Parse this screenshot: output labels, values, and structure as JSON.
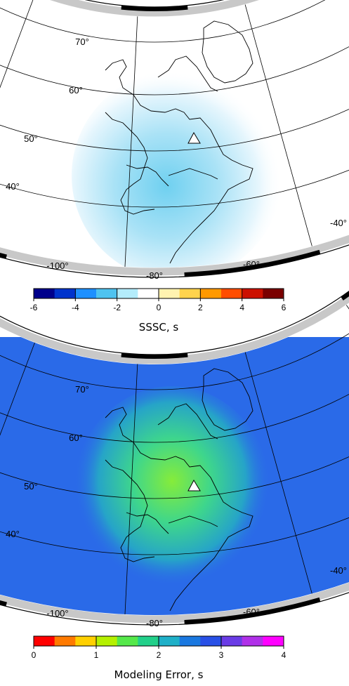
{
  "maps": [
    {
      "id": "sssc",
      "colorbar": {
        "title": "SSSC, s",
        "ticks": [
          "-6",
          "-4",
          "-2",
          "0",
          "2",
          "4",
          "6"
        ],
        "range": [
          -6,
          6
        ],
        "colors": [
          "#00008b",
          "#0033cc",
          "#1e90ff",
          "#4fc3f0",
          "#b3ecfb",
          "#ffffff",
          "#fff3b0",
          "#ffd34d",
          "#ff9900",
          "#ff4d00",
          "#cc1100",
          "#7a0000"
        ]
      },
      "field_colors": {
        "outer": "#ffffff",
        "mid": "#e6f6fd",
        "inner": "#a9e2f6",
        "core": "#6fd0f0"
      }
    },
    {
      "id": "modeling-error",
      "colorbar": {
        "title": "Modeling Error, s",
        "ticks": [
          "0",
          "1",
          "2",
          "3",
          "4"
        ],
        "range": [
          0,
          4
        ],
        "colors": [
          "#ff0000",
          "#ff7a00",
          "#ffd000",
          "#b5f000",
          "#55e84a",
          "#22d08a",
          "#1fb0c8",
          "#1a78e0",
          "#2850e6",
          "#6a3ce6",
          "#b030e8",
          "#ff00ff"
        ]
      },
      "field_colors": {
        "outer": "#2a6ae8",
        "mid": "#26a4c8",
        "inner": "#3ed68c",
        "core": "#86ec3a"
      }
    }
  ],
  "lat_labels": [
    "70°",
    "60°",
    "50°",
    "40°"
  ],
  "lon_labels": [
    "-100°",
    "-80°",
    "-60°",
    "-40°"
  ],
  "marker": "triangle-station-icon"
}
